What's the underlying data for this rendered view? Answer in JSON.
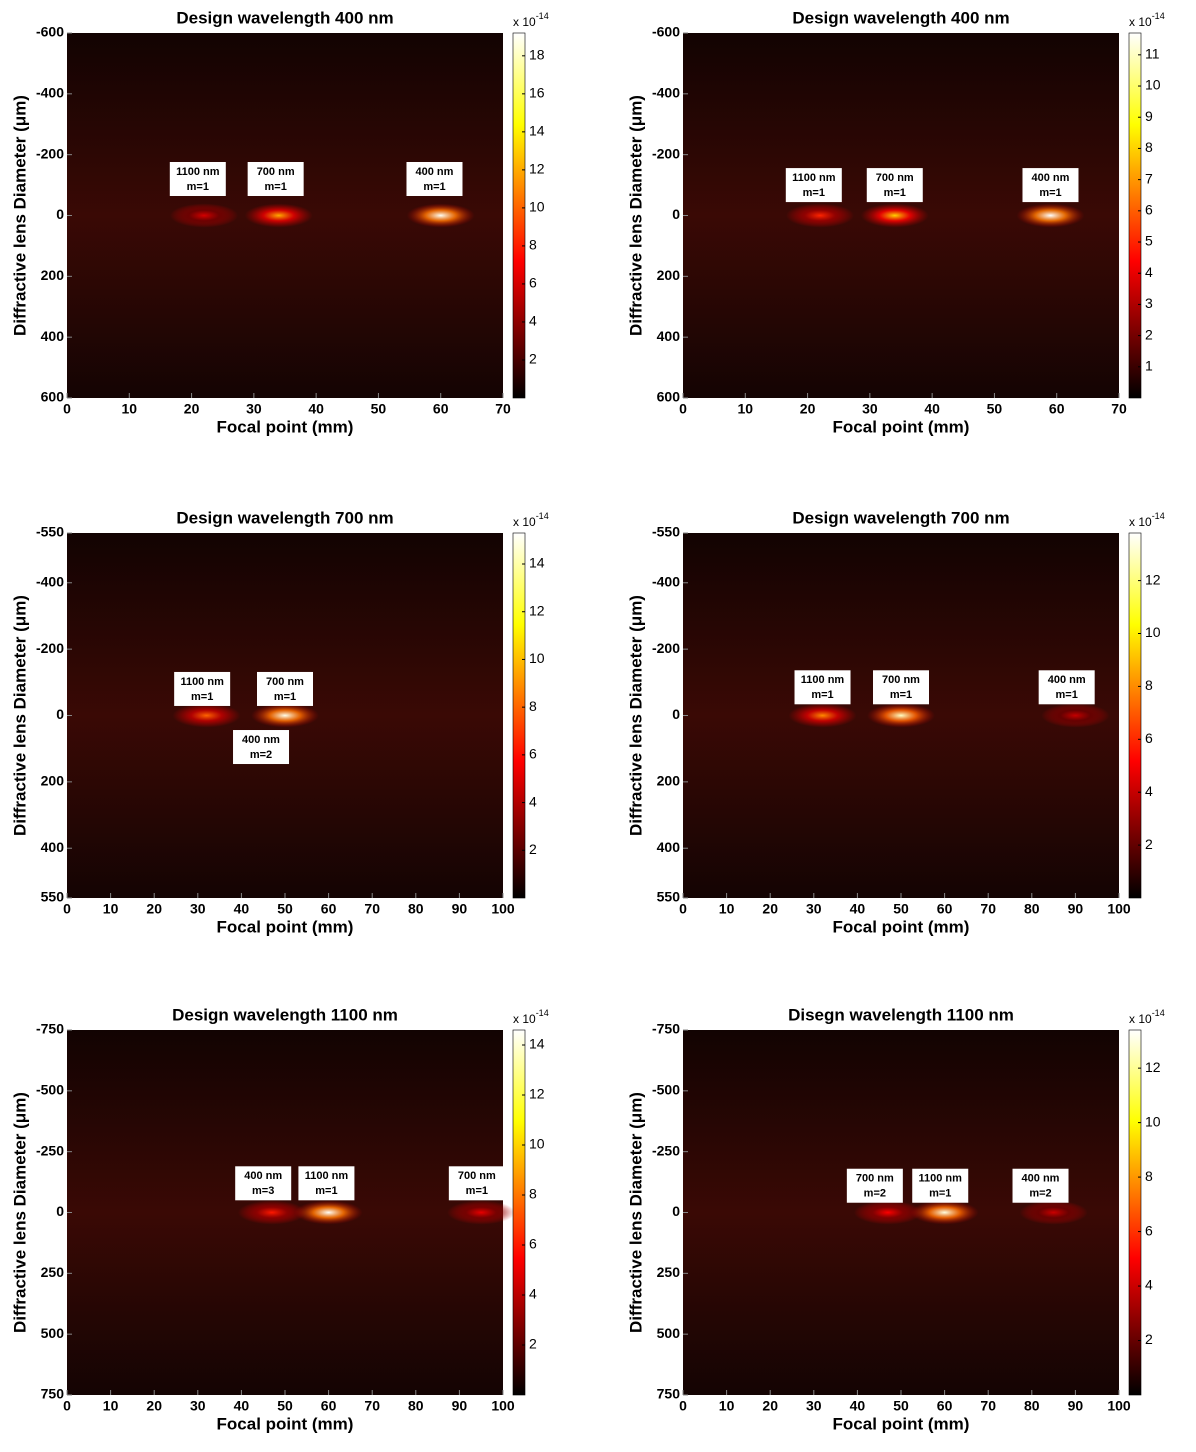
{
  "chart_data": [
    {
      "type": "heatmap",
      "title": "Design wavelength 400 nm",
      "x_label": "Focal point (mm)",
      "y_label": "Diffractive lens Diameter (μm)",
      "xlim": [
        0,
        70
      ],
      "xticks": [
        0,
        10,
        20,
        30,
        40,
        50,
        60,
        70
      ],
      "ylim": [
        -600,
        600
      ],
      "yreverse": true,
      "yticks": [
        -600,
        -400,
        -200,
        0,
        200,
        400,
        600
      ],
      "clim": [
        0,
        19.2
      ],
      "cticks": [
        2,
        4,
        6,
        8,
        10,
        12,
        14,
        16,
        18
      ],
      "colorbar_label": "x 10",
      "colorbar_exponent": "-14",
      "peaks": [
        {
          "x": 22,
          "y": 0,
          "value": 6
        },
        {
          "x": 34,
          "y": 0,
          "value": 12
        },
        {
          "x": 60,
          "y": 0,
          "value": 19
        }
      ],
      "annotations": [
        {
          "x": 21,
          "y": -120,
          "text": [
            "1100 nm",
            "m=1"
          ]
        },
        {
          "x": 33.5,
          "y": -120,
          "text": [
            "700 nm",
            "m=1"
          ]
        },
        {
          "x": 59,
          "y": -120,
          "text": [
            "400 nm",
            "m=1"
          ]
        }
      ]
    },
    {
      "type": "heatmap",
      "title": "Design wavelength 400 nm",
      "x_label": "Focal point (mm)",
      "y_label": "Diffractive lens Diameter (μm)",
      "xlim": [
        0,
        70
      ],
      "xticks": [
        0,
        10,
        20,
        30,
        40,
        50,
        60,
        70
      ],
      "ylim": [
        -600,
        600
      ],
      "yreverse": true,
      "yticks": [
        -600,
        -400,
        -200,
        0,
        200,
        400,
        600
      ],
      "clim": [
        0,
        11.7
      ],
      "cticks": [
        1,
        2,
        3,
        4,
        5,
        6,
        7,
        8,
        9,
        10,
        11
      ],
      "colorbar_label": "x 10",
      "colorbar_exponent": "-14",
      "peaks": [
        {
          "x": 22,
          "y": 0,
          "value": 5
        },
        {
          "x": 34,
          "y": 0,
          "value": 8
        },
        {
          "x": 59,
          "y": 0,
          "value": 11.7
        }
      ],
      "annotations": [
        {
          "x": 21,
          "y": -100,
          "text": [
            "1100 nm",
            "m=1"
          ]
        },
        {
          "x": 34,
          "y": -100,
          "text": [
            "700 nm",
            "m=1"
          ]
        },
        {
          "x": 59,
          "y": -100,
          "text": [
            "400 nm",
            "m=1"
          ]
        }
      ]
    },
    {
      "type": "heatmap",
      "title": "Design wavelength 700 nm",
      "x_label": "Focal point (mm)",
      "y_label": "Diffractive lens Diameter (μm)",
      "xlim": [
        0,
        100
      ],
      "xticks": [
        0,
        10,
        20,
        30,
        40,
        50,
        60,
        70,
        80,
        90,
        100
      ],
      "ylim": [
        -550,
        550
      ],
      "yreverse": true,
      "yticks": [
        -550,
        -400,
        -200,
        0,
        200,
        400,
        550
      ],
      "clim": [
        0,
        15.3
      ],
      "cticks": [
        2,
        4,
        6,
        8,
        10,
        12,
        14
      ],
      "colorbar_label": "x 10",
      "colorbar_exponent": "-14",
      "peaks": [
        {
          "x": 32,
          "y": 0,
          "value": 8
        },
        {
          "x": 50,
          "y": 0,
          "value": 15
        }
      ],
      "annotations": [
        {
          "x": 31,
          "y": -80,
          "text": [
            "1100 nm",
            "m=1"
          ]
        },
        {
          "x": 50,
          "y": -80,
          "text": [
            "700 nm",
            "m=1"
          ]
        },
        {
          "x": 44.5,
          "y": 95,
          "text": [
            "400 nm",
            "m=2"
          ]
        }
      ]
    },
    {
      "type": "heatmap",
      "title": "Design wavelength 700 nm",
      "x_label": "Focal point (mm)",
      "y_label": "Diffractive lens Diameter (μm)",
      "xlim": [
        0,
        100
      ],
      "xticks": [
        0,
        10,
        20,
        30,
        40,
        50,
        60,
        70,
        80,
        90,
        100
      ],
      "ylim": [
        -550,
        550
      ],
      "yreverse": true,
      "yticks": [
        -550,
        -400,
        -200,
        0,
        200,
        400,
        550
      ],
      "clim": [
        0,
        13.8
      ],
      "cticks": [
        2,
        4,
        6,
        8,
        10,
        12
      ],
      "colorbar_label": "x 10",
      "colorbar_exponent": "-14",
      "peaks": [
        {
          "x": 32,
          "y": 0,
          "value": 8
        },
        {
          "x": 50,
          "y": 0,
          "value": 13
        },
        {
          "x": 90,
          "y": 0,
          "value": 4
        }
      ],
      "annotations": [
        {
          "x": 32,
          "y": -85,
          "text": [
            "1100 nm",
            "m=1"
          ]
        },
        {
          "x": 50,
          "y": -85,
          "text": [
            "700 nm",
            "m=1"
          ]
        },
        {
          "x": 88,
          "y": -85,
          "text": [
            "400 nm",
            "m=1"
          ]
        }
      ]
    },
    {
      "type": "heatmap",
      "title": "Design wavelength 1100 nm",
      "x_label": "Focal point (mm)",
      "y_label": "Diffractive lens Diameter (μm)",
      "xlim": [
        0,
        100
      ],
      "xticks": [
        0,
        10,
        20,
        30,
        40,
        50,
        60,
        70,
        80,
        90,
        100
      ],
      "ylim": [
        -750,
        750
      ],
      "yreverse": true,
      "yticks": [
        -750,
        -500,
        -250,
        0,
        250,
        500,
        750
      ],
      "clim": [
        0,
        14.6
      ],
      "cticks": [
        2,
        4,
        6,
        8,
        10,
        12,
        14
      ],
      "colorbar_label": "x 10",
      "colorbar_exponent": "-14",
      "peaks": [
        {
          "x": 47,
          "y": 0,
          "value": 6
        },
        {
          "x": 60,
          "y": 0,
          "value": 14.5
        },
        {
          "x": 95,
          "y": 0,
          "value": 5
        }
      ],
      "annotations": [
        {
          "x": 45,
          "y": -120,
          "text": [
            "400 nm",
            "m=3"
          ]
        },
        {
          "x": 59.5,
          "y": -120,
          "text": [
            "1100 nm",
            "m=1"
          ]
        },
        {
          "x": 94,
          "y": -120,
          "text": [
            "700 nm",
            "m=1"
          ]
        }
      ]
    },
    {
      "type": "heatmap",
      "title": "Disegn wavelength 1100 nm",
      "x_label": "Focal point (mm)",
      "y_label": "Diffractive lens Diameter (μm)",
      "xlim": [
        0,
        100
      ],
      "xticks": [
        0,
        10,
        20,
        30,
        40,
        50,
        60,
        70,
        80,
        90,
        100
      ],
      "ylim": [
        -750,
        750
      ],
      "yreverse": true,
      "yticks": [
        -750,
        -500,
        -250,
        0,
        250,
        500,
        750
      ],
      "clim": [
        0,
        13.4
      ],
      "cticks": [
        2,
        4,
        6,
        8,
        10,
        12
      ],
      "colorbar_label": "x 10",
      "colorbar_exponent": "-14",
      "peaks": [
        {
          "x": 47,
          "y": 0,
          "value": 5
        },
        {
          "x": 60,
          "y": 0,
          "value": 13
        },
        {
          "x": 85,
          "y": 0,
          "value": 4
        }
      ],
      "annotations": [
        {
          "x": 44,
          "y": -110,
          "text": [
            "700 nm",
            "m=2"
          ]
        },
        {
          "x": 59,
          "y": -110,
          "text": [
            "1100 nm",
            "m=1"
          ]
        },
        {
          "x": 82,
          "y": -110,
          "text": [
            "400 nm",
            "m=2"
          ]
        }
      ]
    }
  ]
}
